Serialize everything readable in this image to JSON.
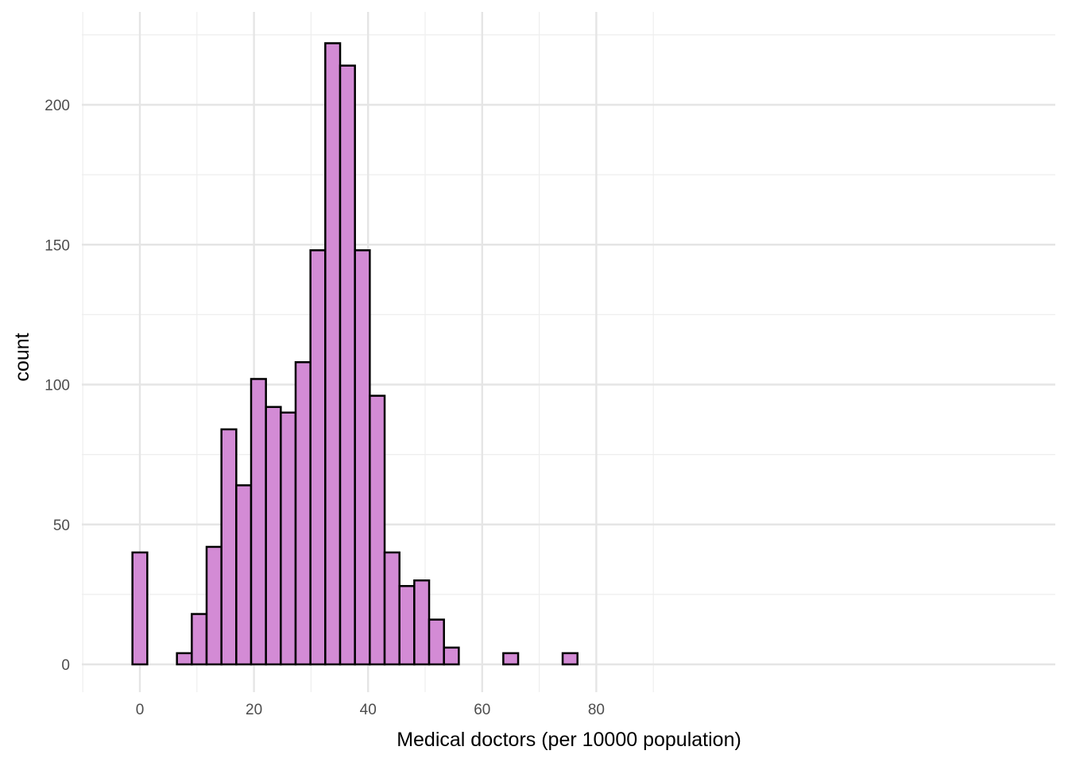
{
  "chart_data": {
    "type": "bar",
    "subtype": "histogram",
    "title": "",
    "xlabel": "Medical doctors (per 10000 population)",
    "ylabel": "count",
    "bin_width": 2.6,
    "bin_centers": [
      0,
      2.6,
      5.2,
      7.8,
      10.4,
      13,
      15.6,
      18.2,
      20.8,
      23.4,
      26,
      28.6,
      31.2,
      33.8,
      36.4,
      39,
      41.6,
      44.2,
      46.8,
      49.4,
      52,
      54.6,
      57.2,
      59.8,
      62.4,
      65,
      67.6,
      70.2,
      72.8,
      75.4
    ],
    "values": [
      40,
      0,
      0,
      4,
      18,
      42,
      84,
      64,
      102,
      92,
      90,
      108,
      148,
      222,
      214,
      148,
      96,
      40,
      28,
      30,
      16,
      6,
      0,
      0,
      0,
      4,
      0,
      0,
      0,
      4
    ],
    "xlim": [
      -5.2,
      80.6
    ],
    "ylim": [
      -10,
      230
    ],
    "x_ticks": [
      0,
      20,
      40,
      60,
      80
    ],
    "y_ticks": [
      0,
      50,
      100,
      150,
      200
    ],
    "x_tick_labels": [
      "0",
      "20",
      "40",
      "60",
      "80"
    ],
    "y_tick_labels": [
      "0",
      "50",
      "100",
      "150",
      "200"
    ],
    "grid": true,
    "colors": {
      "fill": "#d38bd5",
      "outline": "#000000",
      "grid": "#e5e5e5",
      "tick_text": "#4d4d4d"
    }
  }
}
